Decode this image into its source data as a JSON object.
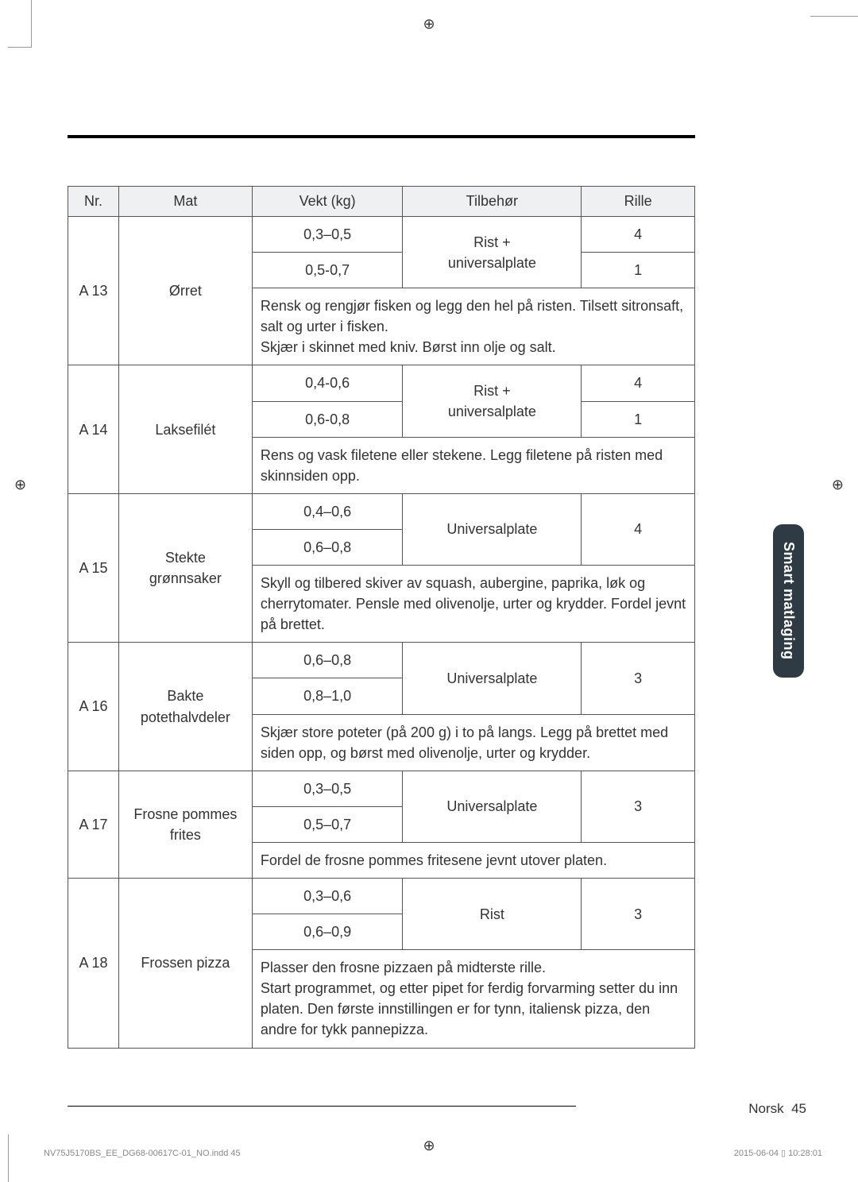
{
  "registration_mark": "⊕",
  "side_tab": "Smart matlaging",
  "footer": {
    "language": "Norsk",
    "page": "45"
  },
  "imprint": {
    "left": "NV75J5170BS_EE_DG68-00617C-01_NO.indd   45",
    "right": "2015-06-04   ▯ 10:28:01"
  },
  "table": {
    "headers": {
      "nr": "Nr.",
      "mat": "Mat",
      "weight": "Vekt (kg)",
      "accessory": "Tilbehør",
      "rille": "Rille"
    },
    "rows": [
      {
        "nr": "A 13",
        "mat": "Ørret",
        "w1": "0,3–0,5",
        "w2": "0,5-0,7",
        "acc": "Rist + universalplate",
        "r1": "4",
        "r2": "1",
        "instructions": "Rensk og rengjør fisken og legg den hel på risten. Tilsett sitronsaft, salt og urter i fisken.\nSkjær i skinnet med kniv. Børst inn olje og salt."
      },
      {
        "nr": "A 14",
        "mat": "Laksefilét",
        "w1": "0,4-0,6",
        "w2": "0,6-0,8",
        "acc": "Rist + universalplate",
        "r1": "4",
        "r2": "1",
        "instructions": "Rens og vask filetene eller stekene. Legg filetene på risten med skinnsiden opp."
      },
      {
        "nr": "A 15",
        "mat": "Stekte grønnsaker",
        "w1": "0,4–0,6",
        "w2": "0,6–0,8",
        "acc": "Universalplate",
        "r1": "4",
        "instructions": "Skyll og tilbered skiver av squash, aubergine, paprika, løk og cherrytomater. Pensle med olivenolje, urter og krydder. Fordel jevnt på brettet."
      },
      {
        "nr": "A 16",
        "mat": "Bakte potethalvdeler",
        "w1": "0,6–0,8",
        "w2": "0,8–1,0",
        "acc": "Universalplate",
        "r1": "3",
        "instructions": "Skjær store poteter (på 200 g) i to på langs. Legg på brettet med siden opp, og børst med olivenolje, urter og krydder."
      },
      {
        "nr": "A 17",
        "mat": "Frosne pommes frites",
        "w1": "0,3–0,5",
        "w2": "0,5–0,7",
        "acc": "Universalplate",
        "r1": "3",
        "instructions": "Fordel de frosne pommes fritesene jevnt utover platen."
      },
      {
        "nr": "A 18",
        "mat": "Frossen pizza",
        "w1": "0,3–0,6",
        "w2": "0,6–0,9",
        "acc": "Rist",
        "r1": "3",
        "instructions": "Plasser den frosne pizzaen på midterste rille.\nStart programmet, og etter pipet for ferdig forvarming setter du inn platen. Den første innstillingen er for tynn, italiensk pizza, den andre for tykk pannepizza."
      }
    ]
  }
}
